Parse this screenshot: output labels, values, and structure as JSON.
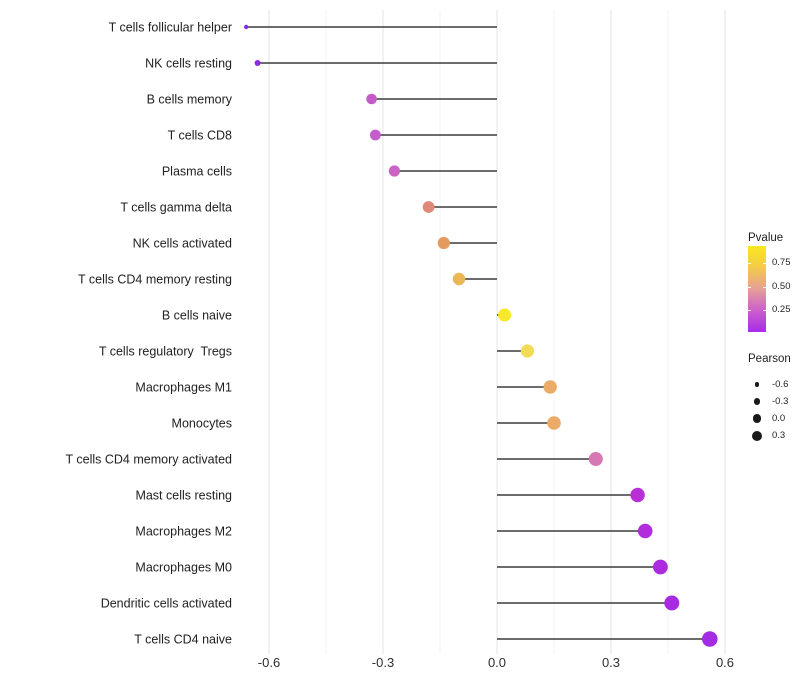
{
  "chart_data": {
    "type": "lollipop",
    "orientation": "horizontal",
    "grid": "major+minor",
    "background": "#ffffff",
    "x_axis": {
      "ticks": [
        "-0.6",
        "-0.3",
        "0.0",
        "0.3",
        "0.6"
      ],
      "tick_values": [
        -0.6,
        -0.3,
        0.0,
        0.3,
        0.6
      ],
      "minor_tick_values": [
        -0.45,
        -0.15,
        0.15,
        0.45
      ],
      "range": [
        -0.72,
        0.66
      ]
    },
    "points": [
      {
        "label": "T cells follicular helper",
        "pearson": -0.66,
        "color": "#842BE4",
        "radius": 2.2
      },
      {
        "label": "NK cells resting",
        "pearson": -0.63,
        "color": "#8B2BE2",
        "radius": 3.0
      },
      {
        "label": "B cells memory",
        "pearson": -0.33,
        "color": "#C55BC8",
        "radius": 5.3
      },
      {
        "label": "T cells CD8",
        "pearson": -0.32,
        "color": "#C45CC9",
        "radius": 5.4
      },
      {
        "label": "Plasma cells",
        "pearson": -0.27,
        "color": "#C963C4",
        "radius": 5.6
      },
      {
        "label": "T cells gamma delta",
        "pearson": -0.18,
        "color": "#DF8A79",
        "radius": 5.9
      },
      {
        "label": "NK cells activated",
        "pearson": -0.14,
        "color": "#E49B60",
        "radius": 6.1
      },
      {
        "label": "T cells CD4 memory resting",
        "pearson": -0.1,
        "color": "#EBB755",
        "radius": 6.2
      },
      {
        "label": "B cells naive",
        "pearson": 0.02,
        "color": "#F7E925",
        "radius": 6.5
      },
      {
        "label": "T cells regulatory  Tregs",
        "pearson": 0.08,
        "color": "#F2DC55",
        "radius": 6.6
      },
      {
        "label": "Macrophages M1",
        "pearson": 0.14,
        "color": "#EBAC67",
        "radius": 6.7
      },
      {
        "label": "Monocytes",
        "pearson": 0.15,
        "color": "#EBAB66",
        "radius": 6.8
      },
      {
        "label": "T cells CD4 memory activated",
        "pearson": 0.26,
        "color": "#D678B4",
        "radius": 7.0
      },
      {
        "label": "Mast cells resting",
        "pearson": 0.37,
        "color": "#B82FD8",
        "radius": 7.2
      },
      {
        "label": "Macrophages M2",
        "pearson": 0.39,
        "color": "#B22DDC",
        "radius": 7.3
      },
      {
        "label": "Macrophages M0",
        "pearson": 0.43,
        "color": "#AC2BDF",
        "radius": 7.4
      },
      {
        "label": "Dendritic cells activated",
        "pearson": 0.46,
        "color": "#A82BE1",
        "radius": 7.5
      },
      {
        "label": "T cells CD4 naive",
        "pearson": 0.56,
        "color": "#A32BE4",
        "radius": 7.8
      }
    ],
    "legends": {
      "pvalue": {
        "title": "Pvalue",
        "tick_labels": [
          "0.75",
          "0.50",
          "0.25"
        ],
        "gradient_stops": [
          "#F9E81F",
          "#F3CB48",
          "#E69F97",
          "#CB5FCB",
          "#A82BE8"
        ]
      },
      "pearson": {
        "title": "Pearson",
        "dot_color": "#1A1A1A",
        "items": [
          {
            "label": "-0.6",
            "radius": 2.3
          },
          {
            "label": "-0.3",
            "radius": 3.3
          },
          {
            "label": "0.0",
            "radius": 4.3
          },
          {
            "label": "0.3",
            "radius": 5.0
          }
        ]
      }
    },
    "colors": {
      "stem": "#3B3B3B",
      "grid_major": "#E6E6E6",
      "grid_minor": "#F3F3F3",
      "axis_text": "#2E2E2E",
      "category_text": "#212121"
    }
  }
}
